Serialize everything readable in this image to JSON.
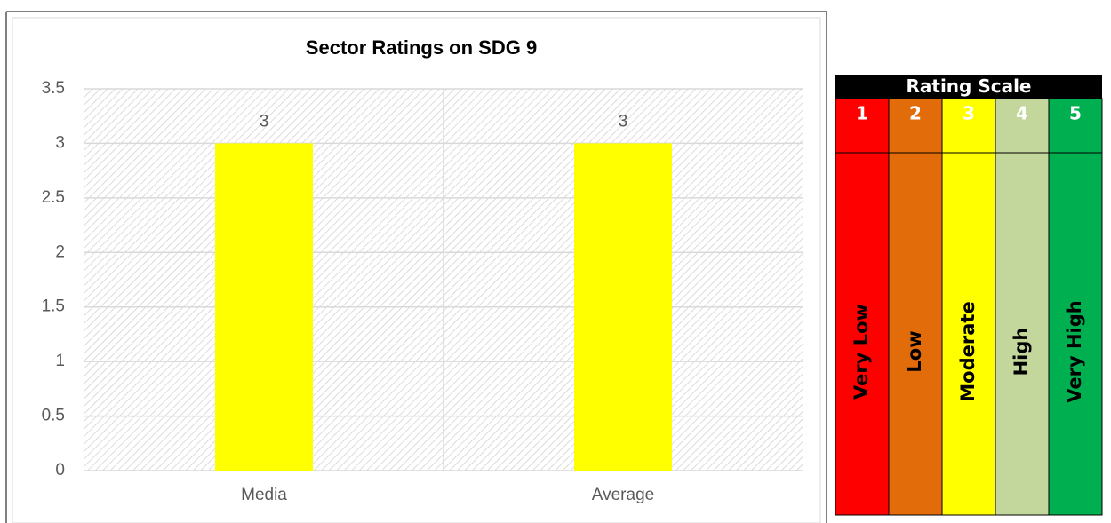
{
  "chart_data": {
    "type": "bar",
    "title": "Sector Ratings on SDG 9",
    "categories": [
      "Media",
      "Average"
    ],
    "values": [
      3,
      3
    ],
    "color": "#ffff00",
    "ylim": [
      0,
      3.5
    ],
    "yticks": [
      0,
      0.5,
      1,
      1.5,
      2,
      2.5,
      3,
      3.5
    ],
    "grid": true
  },
  "rating_scale": {
    "title": "Rating Scale",
    "levels": [
      {
        "number": "1",
        "label": "Very Low",
        "color": "#ff0000"
      },
      {
        "number": "2",
        "label": "Low",
        "color": "#e36c0a"
      },
      {
        "number": "3",
        "label": "Moderate",
        "color": "#ffff00"
      },
      {
        "number": "4",
        "label": "High",
        "color": "#c3d69b"
      },
      {
        "number": "5",
        "label": "Very High",
        "color": "#00b050"
      }
    ]
  }
}
